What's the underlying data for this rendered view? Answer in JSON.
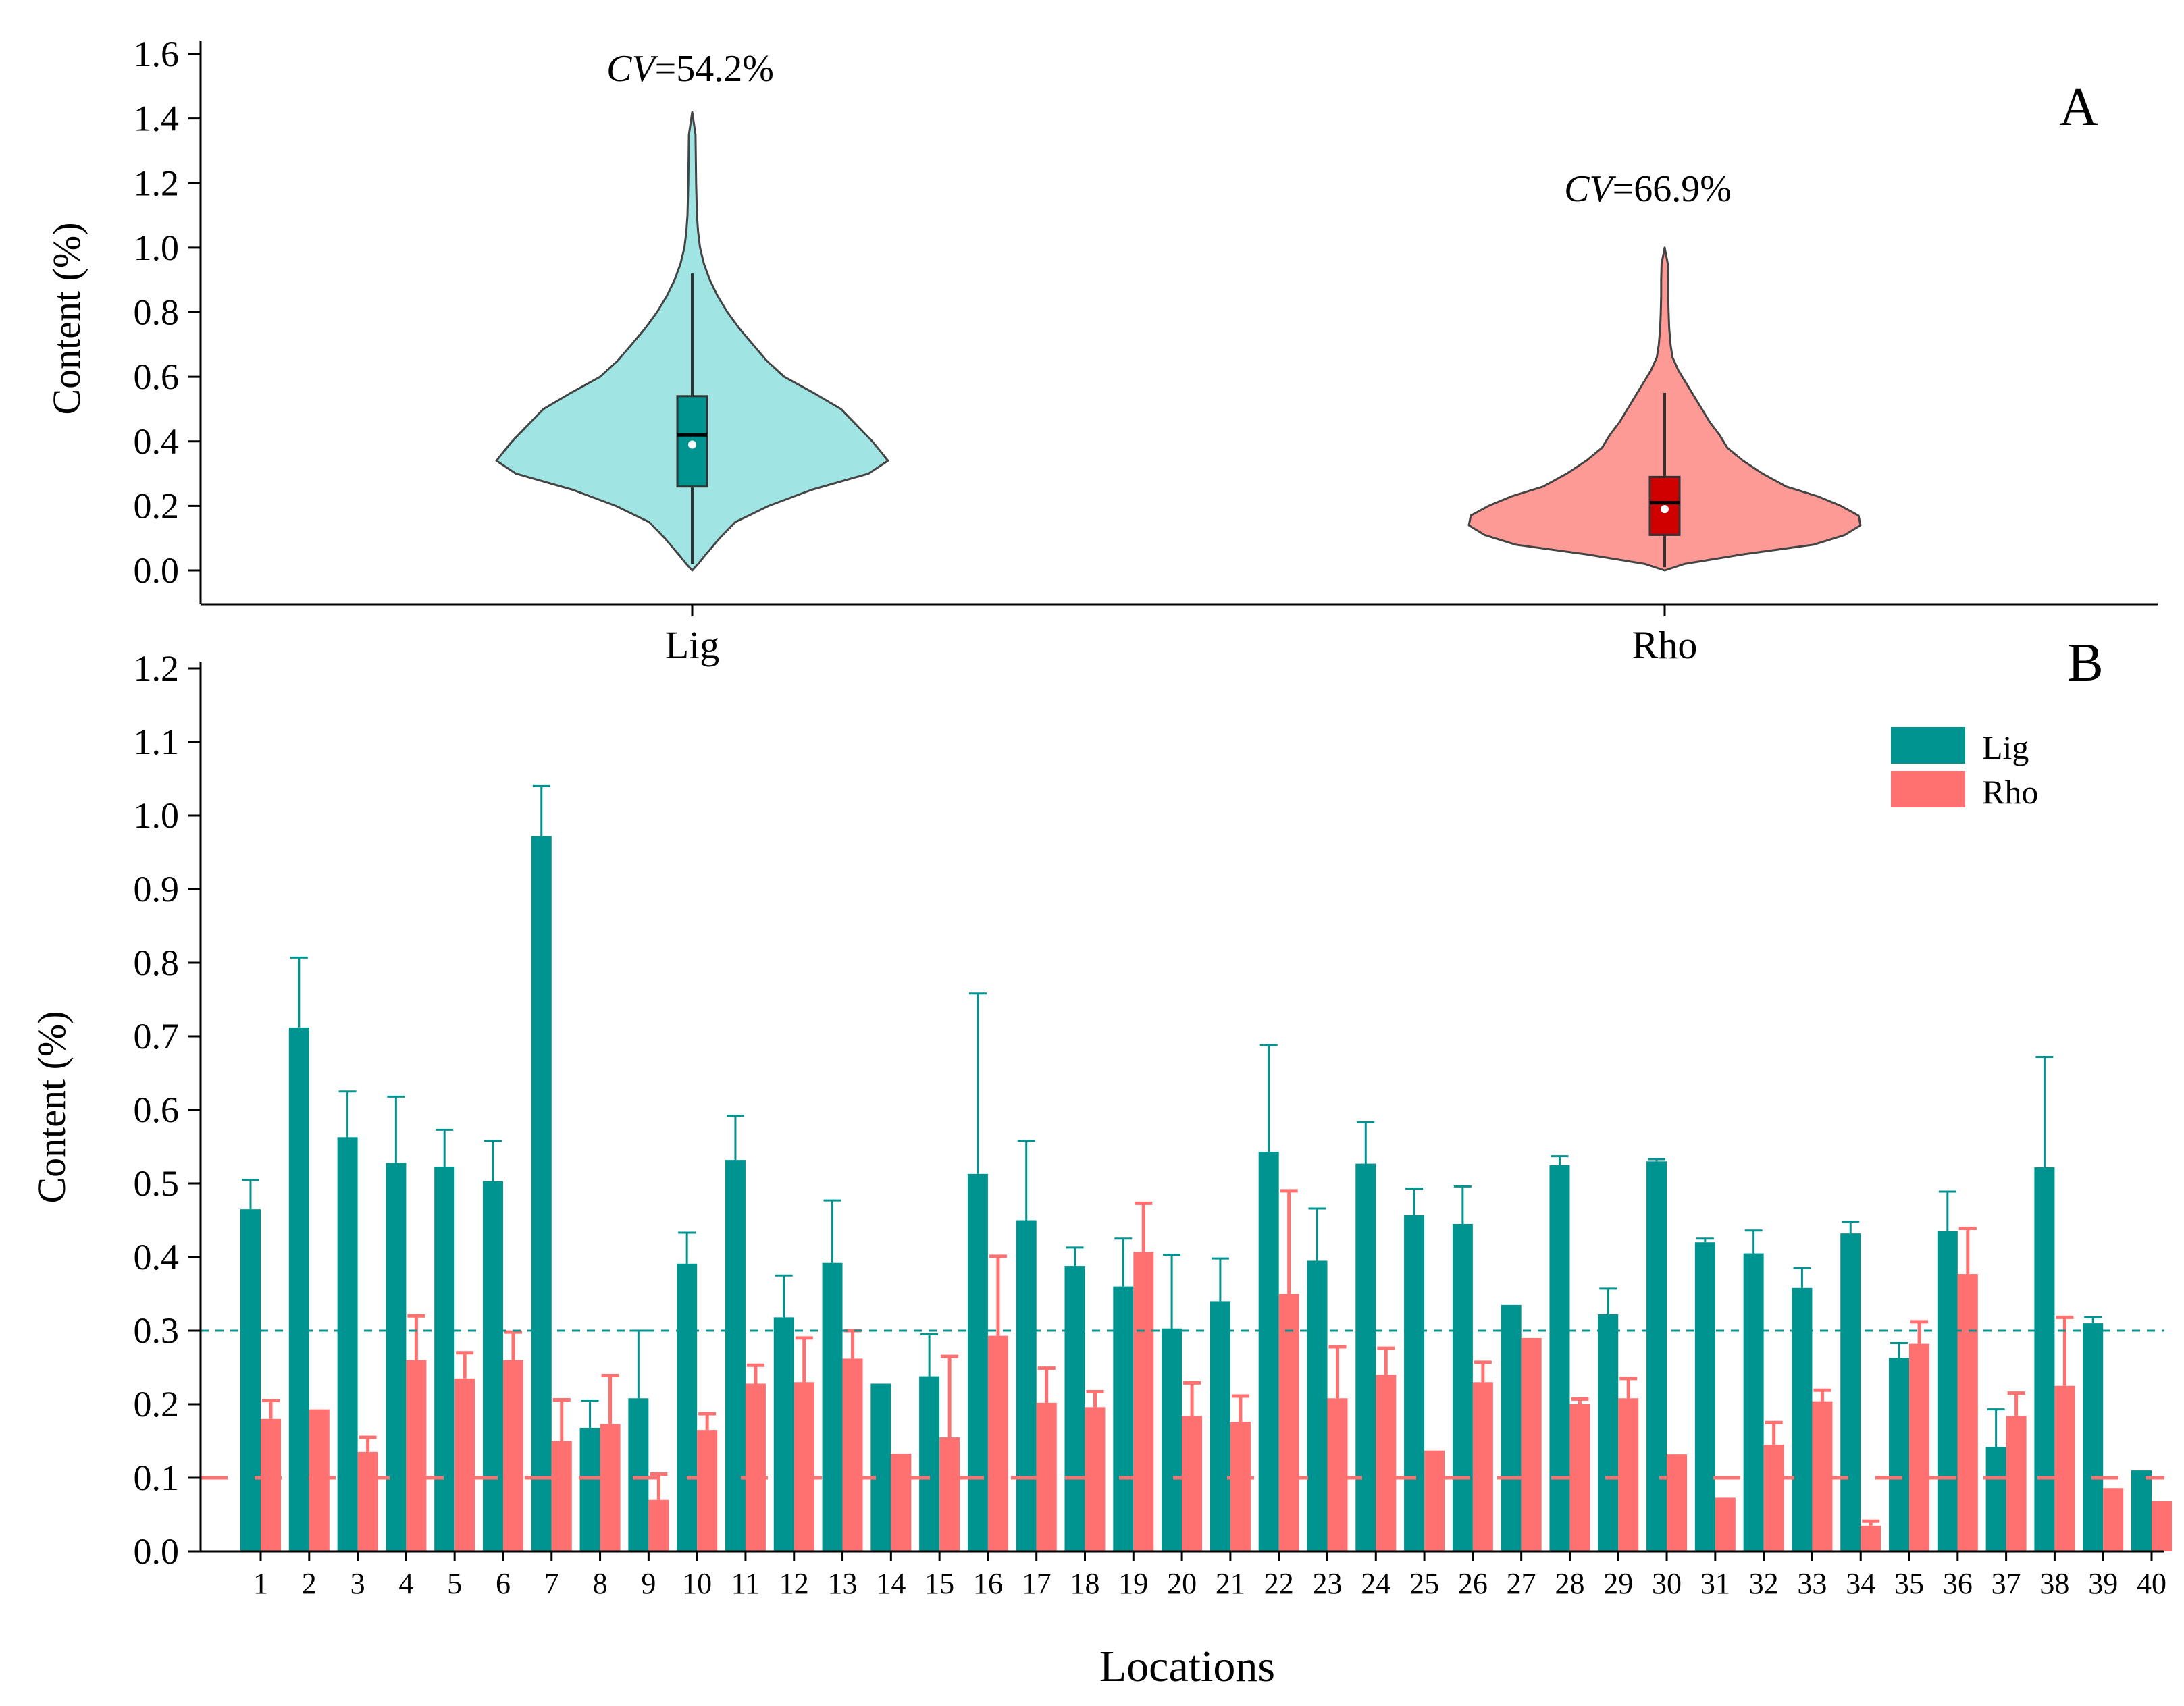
{
  "colors": {
    "lig": "#009490",
    "rho": "#ff7070",
    "lig_violin": "#a0e5e3",
    "rho_violin": "#fe9a96",
    "lig_box": "#009490",
    "rho_box": "#d00000",
    "axis": "#000000",
    "violin_stroke": "#444444"
  },
  "chart_data": [
    {
      "type": "violin",
      "panel_label": "A",
      "ylabel": "Content (%)",
      "ylim": [
        -0.1,
        1.6
      ],
      "yticks": [
        "0.0",
        "0.2",
        "0.4",
        "0.6",
        "0.8",
        "1.0",
        "1.2",
        "1.4",
        "1.6"
      ],
      "categories": [
        "Lig",
        "Rho"
      ],
      "cv_prefix": "CV",
      "series": [
        {
          "name": "Lig",
          "cv_value": "=54.2%",
          "range": [
            0.0,
            1.42
          ],
          "whisker": [
            0.02,
            0.92
          ],
          "box": [
            0.26,
            0.54
          ],
          "median": 0.42,
          "mean": 0.39,
          "density": [
            [
              0.0,
              0.0
            ],
            [
              0.02,
              0.03
            ],
            [
              0.05,
              0.07
            ],
            [
              0.1,
              0.14
            ],
            [
              0.15,
              0.22
            ],
            [
              0.2,
              0.39
            ],
            [
              0.25,
              0.61
            ],
            [
              0.3,
              0.9
            ],
            [
              0.34,
              1.0
            ],
            [
              0.4,
              0.92
            ],
            [
              0.45,
              0.84
            ],
            [
              0.5,
              0.76
            ],
            [
              0.55,
              0.62
            ],
            [
              0.6,
              0.47
            ],
            [
              0.65,
              0.38
            ],
            [
              0.7,
              0.31
            ],
            [
              0.75,
              0.24
            ],
            [
              0.8,
              0.18
            ],
            [
              0.85,
              0.13
            ],
            [
              0.9,
              0.09
            ],
            [
              0.95,
              0.06
            ],
            [
              1.0,
              0.04
            ],
            [
              1.05,
              0.03
            ],
            [
              1.1,
              0.024
            ],
            [
              1.2,
              0.02
            ],
            [
              1.3,
              0.018
            ],
            [
              1.35,
              0.017
            ],
            [
              1.42,
              0.0
            ]
          ]
        },
        {
          "name": "Rho",
          "cv_value": "=66.9%",
          "range": [
            0.0,
            1.0
          ],
          "whisker": [
            0.01,
            0.55
          ],
          "box": [
            0.11,
            0.29
          ],
          "median": 0.21,
          "mean": 0.19,
          "density": [
            [
              0.0,
              0.0
            ],
            [
              0.02,
              0.1
            ],
            [
              0.05,
              0.4
            ],
            [
              0.08,
              0.76
            ],
            [
              0.11,
              0.92
            ],
            [
              0.14,
              1.0
            ],
            [
              0.17,
              0.99
            ],
            [
              0.2,
              0.9
            ],
            [
              0.23,
              0.78
            ],
            [
              0.26,
              0.62
            ],
            [
              0.3,
              0.5
            ],
            [
              0.34,
              0.4
            ],
            [
              0.38,
              0.32
            ],
            [
              0.42,
              0.28
            ],
            [
              0.46,
              0.23
            ],
            [
              0.5,
              0.19
            ],
            [
              0.54,
              0.15
            ],
            [
              0.58,
              0.11
            ],
            [
              0.62,
              0.07
            ],
            [
              0.66,
              0.04
            ],
            [
              0.7,
              0.03
            ],
            [
              0.75,
              0.023
            ],
            [
              0.8,
              0.02
            ],
            [
              0.85,
              0.018
            ],
            [
              0.9,
              0.018
            ],
            [
              0.95,
              0.016
            ],
            [
              1.0,
              0.0
            ]
          ]
        }
      ]
    },
    {
      "type": "bar",
      "panel_label": "B",
      "title": "",
      "xlabel": "Locations",
      "ylabel": "Content (%)",
      "ylim": [
        0.0,
        1.2
      ],
      "yticks": [
        "0.0",
        "0.1",
        "0.2",
        "0.3",
        "0.4",
        "0.5",
        "0.6",
        "0.7",
        "0.8",
        "0.9",
        "1.0",
        "1.1",
        "1.2"
      ],
      "legend_position": "top-right",
      "categories": [
        "1",
        "2",
        "3",
        "4",
        "5",
        "6",
        "7",
        "8",
        "9",
        "10",
        "11",
        "12",
        "13",
        "14",
        "15",
        "16",
        "17",
        "18",
        "19",
        "20",
        "21",
        "22",
        "23",
        "24",
        "25",
        "26",
        "27",
        "28",
        "29",
        "30",
        "31",
        "32",
        "33",
        "34",
        "35",
        "36",
        "37",
        "38",
        "39",
        "40"
      ],
      "series": [
        {
          "name": "Lig",
          "values": [
            0.465,
            0.712,
            0.563,
            0.528,
            0.523,
            0.503,
            0.972,
            0.168,
            0.208,
            0.391,
            0.532,
            0.318,
            0.392,
            0.228,
            0.238,
            0.513,
            0.45,
            0.388,
            0.36,
            0.303,
            0.34,
            0.543,
            0.395,
            0.527,
            0.457,
            0.445,
            0.335,
            0.525,
            0.322,
            0.53,
            0.42,
            0.405,
            0.358,
            0.432,
            0.263,
            0.435,
            0.142,
            0.522,
            0.31,
            0.11
          ],
          "errors": [
            0.04,
            0.095,
            0.062,
            0.09,
            0.05,
            0.055,
            0.068,
            0.037,
            0.092,
            0.042,
            0.06,
            0.057,
            0.085,
            0.0,
            0.057,
            0.245,
            0.108,
            0.025,
            0.065,
            0.1,
            0.058,
            0.145,
            0.071,
            0.056,
            0.036,
            0.051,
            0.0,
            0.012,
            0.035,
            0.003,
            0.005,
            0.031,
            0.027,
            0.016,
            0.02,
            0.054,
            0.051,
            0.15,
            0.008,
            0.0
          ],
          "reference_line": 0.3
        },
        {
          "name": "Rho",
          "values": [
            0.18,
            0.193,
            0.135,
            0.26,
            0.235,
            0.26,
            0.15,
            0.173,
            0.07,
            0.165,
            0.228,
            0.23,
            0.262,
            0.133,
            0.155,
            0.293,
            0.202,
            0.196,
            0.407,
            0.184,
            0.176,
            0.35,
            0.208,
            0.24,
            0.137,
            0.23,
            0.29,
            0.2,
            0.208,
            0.132,
            0.073,
            0.145,
            0.204,
            0.035,
            0.282,
            0.377,
            0.184,
            0.225,
            0.086,
            0.068
          ],
          "errors": [
            0.025,
            0.0,
            0.02,
            0.06,
            0.035,
            0.038,
            0.056,
            0.066,
            0.035,
            0.022,
            0.025,
            0.06,
            0.038,
            0.0,
            0.11,
            0.108,
            0.047,
            0.021,
            0.066,
            0.045,
            0.035,
            0.14,
            0.07,
            0.036,
            0.0,
            0.027,
            0.0,
            0.007,
            0.027,
            0.0,
            0.0,
            0.03,
            0.015,
            0.006,
            0.03,
            0.062,
            0.031,
            0.093,
            0.0,
            0.0
          ],
          "reference_line": 0.1
        }
      ]
    }
  ]
}
